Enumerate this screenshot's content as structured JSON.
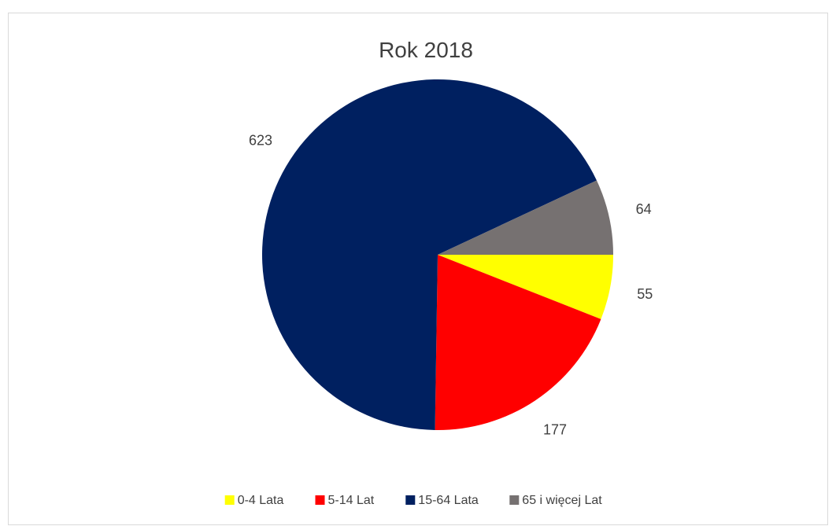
{
  "chart_data": {
    "type": "pie",
    "title": "Rok 2018",
    "categories": [
      "0-4 Lata",
      "5-14 Lat",
      "15-64 Lata",
      "65 i więcej Lat"
    ],
    "values": [
      55,
      177,
      623,
      64
    ],
    "colors": [
      "#ffff00",
      "#ff0000",
      "#002060",
      "#767171"
    ],
    "legend_position": "bottom",
    "start_angle_deg": 0,
    "direction": "clockwise"
  }
}
